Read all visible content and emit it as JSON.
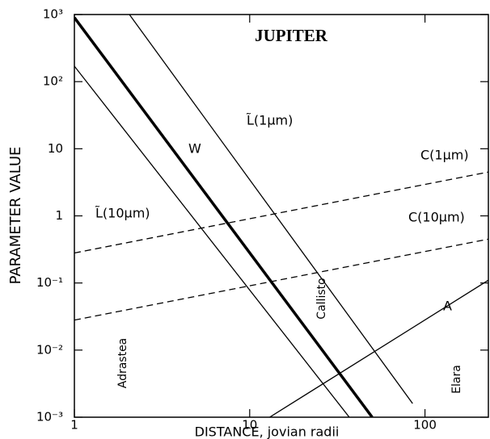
{
  "chart_data": {
    "type": "line",
    "title": "JUPITER",
    "x_label": "DISTANCE, jovian radii",
    "y_label": "PARAMETER VALUE",
    "xlog": true,
    "ylog": true,
    "xlim": [
      1,
      230
    ],
    "ylim": [
      0.001,
      1000
    ],
    "xticks": [
      1,
      10,
      100
    ],
    "yticks": [
      {
        "value": 0.001,
        "label": "10⁻³"
      },
      {
        "value": 0.01,
        "label": "10⁻²"
      },
      {
        "value": 0.1,
        "label": "10⁻¹"
      },
      1,
      10,
      {
        "value": 100,
        "label": "10²"
      },
      {
        "value": 1000,
        "label": "10³"
      }
    ],
    "series": [
      {
        "name": "W",
        "color": "#000",
        "width": 3.5,
        "dashed": false,
        "x": [
          1,
          50
        ],
        "values": [
          900,
          0.001
        ]
      },
      {
        "name": "L̃(10μm)",
        "color": "#000",
        "width": 1.3,
        "dashed": false,
        "x": [
          1,
          37
        ],
        "values": [
          170,
          0.001
        ]
      },
      {
        "name": "L̃(1μm)",
        "color": "#000",
        "width": 1.3,
        "dashed": false,
        "x": [
          2.06,
          85
        ],
        "values": [
          1000,
          0.0016
        ]
      },
      {
        "name": "C(1μm)",
        "color": "#000",
        "width": 1.3,
        "dashed": true,
        "x": [
          1,
          230
        ],
        "values": [
          0.28,
          4.5
        ]
      },
      {
        "name": "C(10μm)",
        "color": "#000",
        "width": 1.3,
        "dashed": true,
        "x": [
          1,
          230
        ],
        "values": [
          0.028,
          0.45
        ]
      },
      {
        "name": "A",
        "color": "#000",
        "width": 1.3,
        "dashed": false,
        "x": [
          13,
          230
        ],
        "values": [
          0.001,
          0.11
        ]
      }
    ],
    "annotations": [
      "Adrastea",
      "Callisto",
      "Elara"
    ]
  }
}
